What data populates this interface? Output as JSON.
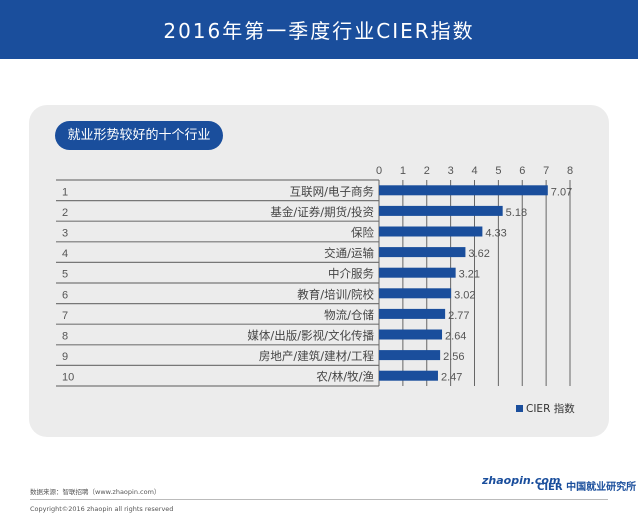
{
  "header": {
    "title": "2016年第一季度行业CIER指数"
  },
  "panel": {
    "title": "就业形势较好的十个行业"
  },
  "chart_data": {
    "type": "bar",
    "orientation": "horizontal",
    "ranks": [
      "1",
      "2",
      "3",
      "4",
      "5",
      "6",
      "7",
      "8",
      "9",
      "10"
    ],
    "categories": [
      "互联网/电子商务",
      "基金/证券/期货/投资",
      "保险",
      "交通/运输",
      "中介服务",
      "教育/培训/院校",
      "物流/仓储",
      "媒体/出版/影视/文化传播",
      "房地产/建筑/建材/工程",
      "农/林/牧/渔"
    ],
    "series": [
      {
        "name": "CIER 指数",
        "values": [
          7.07,
          5.18,
          4.33,
          3.62,
          3.21,
          3.02,
          2.77,
          2.64,
          2.56,
          2.47
        ],
        "color": "#1a4e9c"
      }
    ],
    "xlim": [
      0,
      8
    ],
    "xticks": [
      "0",
      "1",
      "2",
      "3",
      "4",
      "5",
      "6",
      "7",
      "8"
    ],
    "grid": true,
    "legend": "bottom-right"
  },
  "footer": {
    "source": "数据来源：智联招聘（www.zhaopin.com）",
    "copyright": "Copyright©2016 zhaopin all rights reserved",
    "logo_zhaopin": "zhaopin.com 智联招聘",
    "logo_cier": "CIER 中国就业研究所"
  }
}
